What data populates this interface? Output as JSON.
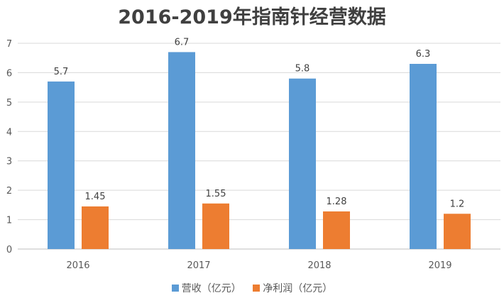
{
  "chart_data": {
    "type": "bar",
    "title": "2016-2019年指南针经营数据",
    "categories": [
      "2016",
      "2017",
      "2018",
      "2019"
    ],
    "series": [
      {
        "name": "营收（亿元）",
        "values": [
          5.7,
          6.7,
          5.8,
          6.3
        ],
        "color": "#5B9BD5"
      },
      {
        "name": "净利润（亿元）",
        "values": [
          1.45,
          1.55,
          1.28,
          1.2
        ],
        "color": "#ED7D31"
      }
    ],
    "ylim": [
      0,
      7
    ],
    "yticks": [
      0,
      1,
      2,
      3,
      4,
      5,
      6,
      7
    ],
    "grid": true,
    "legend": "bottom",
    "xlabel": "",
    "ylabel": ""
  }
}
